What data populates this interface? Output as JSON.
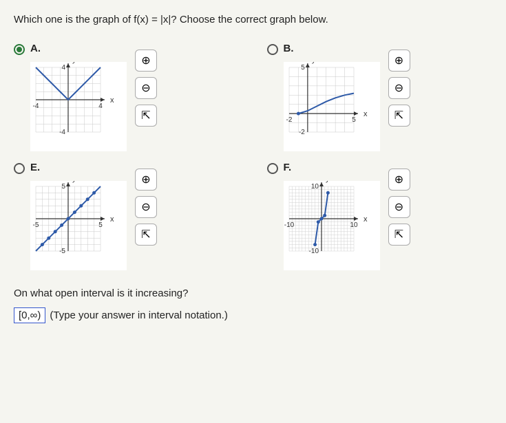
{
  "question_text": "Which one is the graph of f(x) = |x|? Choose the correct graph below.",
  "options": {
    "A": {
      "label": "A.",
      "selected": true,
      "chart": {
        "type": "line",
        "xlim": [
          -4,
          4
        ],
        "ylim": [
          -4,
          4
        ],
        "xticks": [
          -4,
          4
        ],
        "yticks": [
          -4,
          4
        ],
        "x_axis_label": "x",
        "y_axis_label": "y",
        "grid_color": "#c8c8c8",
        "axis_color": "#333",
        "curve_color": "#2e5aa8",
        "curve_width": 2,
        "points": [
          [
            -4,
            4
          ],
          [
            -3,
            3
          ],
          [
            -2,
            2
          ],
          [
            -1,
            1
          ],
          [
            0,
            0
          ],
          [
            1,
            1
          ],
          [
            2,
            2
          ],
          [
            3,
            3
          ],
          [
            4,
            4
          ]
        ],
        "size": 110
      }
    },
    "B": {
      "label": "B.",
      "selected": false,
      "chart": {
        "type": "line",
        "xlim": [
          -2,
          5
        ],
        "ylim": [
          -2,
          5
        ],
        "xticks": [
          -2,
          5
        ],
        "yticks": [
          -2,
          5
        ],
        "x_axis_label": "x",
        "y_axis_label": "y",
        "grid_color": "#c8c8c8",
        "axis_color": "#333",
        "curve_color": "#2e5aa8",
        "curve_width": 2,
        "points": [
          [
            -1,
            0
          ],
          [
            0,
            0.3
          ],
          [
            1,
            0.8
          ],
          [
            2,
            1.3
          ],
          [
            3,
            1.7
          ],
          [
            4,
            2.0
          ],
          [
            5,
            2.2
          ]
        ],
        "dots": [
          [
            -1,
            0
          ]
        ],
        "size": 110
      }
    },
    "E": {
      "label": "E.",
      "selected": false,
      "chart": {
        "type": "line",
        "xlim": [
          -5,
          5
        ],
        "ylim": [
          -5,
          5
        ],
        "xticks": [
          -5,
          5
        ],
        "yticks": [
          -5,
          5
        ],
        "x_axis_label": "x",
        "y_axis_label": "y",
        "grid_color": "#c8c8c8",
        "axis_color": "#333",
        "curve_color": "#2e5aa8",
        "curve_width": 2,
        "points": [
          [
            -5,
            -5
          ],
          [
            -4,
            -4
          ],
          [
            -3,
            -3
          ],
          [
            -2,
            -2
          ],
          [
            -1,
            -1
          ],
          [
            0,
            0
          ],
          [
            1,
            1
          ],
          [
            2,
            2
          ],
          [
            3,
            3
          ],
          [
            4,
            4
          ],
          [
            5,
            5
          ]
        ],
        "dots": [
          [
            -4,
            -4
          ],
          [
            -3,
            -3
          ],
          [
            -2,
            -2
          ],
          [
            -1,
            -1
          ],
          [
            0,
            0
          ],
          [
            1,
            1
          ],
          [
            2,
            2
          ],
          [
            3,
            3
          ],
          [
            4,
            4
          ]
        ],
        "size": 110
      }
    },
    "F": {
      "label": "F.",
      "selected": false,
      "chart": {
        "type": "line",
        "xlim": [
          -10,
          10
        ],
        "ylim": [
          -10,
          10
        ],
        "xticks": [
          -10,
          10
        ],
        "yticks": [
          -10,
          10
        ],
        "x_axis_label": "x",
        "y_axis_label": "y",
        "grid_color": "#d0d0d0",
        "axis_color": "#333",
        "curve_color": "#2e5aa8",
        "curve_width": 2,
        "points": [
          [
            -2,
            -8
          ],
          [
            -1,
            -1
          ],
          [
            0,
            0
          ],
          [
            1,
            1
          ],
          [
            2,
            8
          ]
        ],
        "dots": [
          [
            -2,
            -8
          ],
          [
            -1,
            -1
          ],
          [
            0,
            0
          ],
          [
            1,
            1
          ],
          [
            2,
            8
          ]
        ],
        "size": 110
      }
    }
  },
  "sub_question": "On what open interval is it increasing?",
  "answer_value": "[0,∞)",
  "answer_hint": "(Type your answer in interval notation.)",
  "tool_icons": {
    "zoom_in": "⊕",
    "zoom_out": "⊖",
    "popout": "⇱"
  }
}
